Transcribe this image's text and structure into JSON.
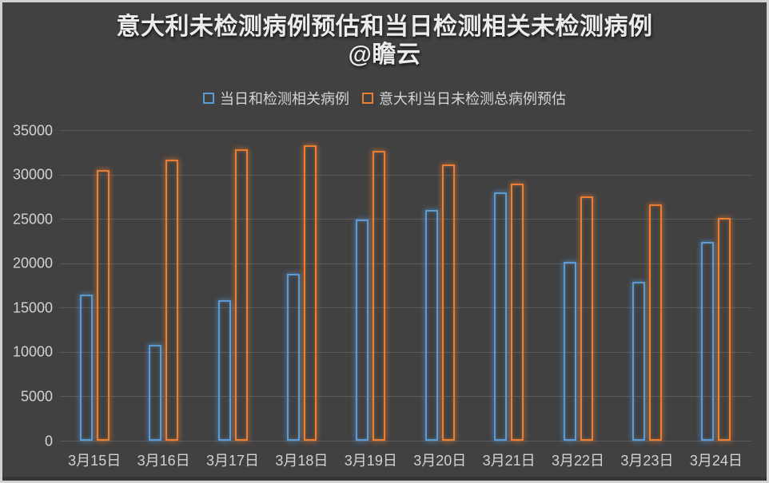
{
  "window": {
    "background": "#414141",
    "frame_color": "#D2D2D2",
    "gridline_color": "#5C5C5C",
    "text_color": "#D2D2D2"
  },
  "title": {
    "line1": "意大利未检测病例预估和当日检测相关未检测病例",
    "line2": "@瞻云"
  },
  "chart_data": {
    "type": "bar",
    "title": "意大利未检测病例预估和当日检测相关未检测病例 @瞻云",
    "categories": [
      "3月15日",
      "3月16日",
      "3月17日",
      "3月18日",
      "3月19日",
      "3月20日",
      "3月21日",
      "3月22日",
      "3月23日",
      "3月24日"
    ],
    "series": [
      {
        "name": "当日和检测相关病例",
        "color": "#5B9BD5",
        "values": [
          16500,
          10800,
          15800,
          18800,
          24900,
          26000,
          28000,
          20200,
          17900,
          22400
        ]
      },
      {
        "name": "意大利当日未检测总病例预估",
        "color": "#ED7D31",
        "values": [
          30500,
          31700,
          32800,
          33300,
          32700,
          31100,
          29000,
          27500,
          26600,
          25100
        ]
      }
    ],
    "xlabel": "",
    "ylabel": "",
    "ylim": [
      0,
      35000
    ],
    "ytick_step": 5000,
    "ytick_labels": [
      "0",
      "5000",
      "10000",
      "15000",
      "20000",
      "25000",
      "30000",
      "35000"
    ],
    "grid": true,
    "legend_position": "top",
    "bar_style": "outlined-glow",
    "background": "dark"
  }
}
